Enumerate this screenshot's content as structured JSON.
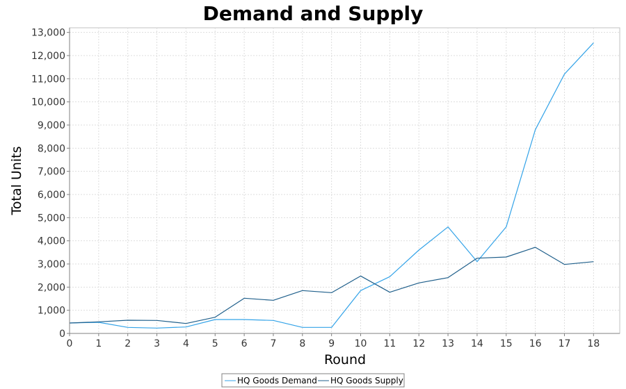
{
  "chart_data": {
    "type": "line",
    "title": "Demand and Supply",
    "xlabel": "Round",
    "ylabel": "Total Units",
    "x": [
      0,
      1,
      2,
      3,
      4,
      5,
      6,
      7,
      8,
      9,
      10,
      11,
      12,
      13,
      14,
      15,
      16,
      17,
      18
    ],
    "xlim": [
      0,
      18.9
    ],
    "ylim": [
      0,
      13200
    ],
    "yticks": [
      0,
      1000,
      2000,
      3000,
      4000,
      5000,
      6000,
      7000,
      8000,
      9000,
      10000,
      11000,
      12000,
      13000
    ],
    "ytick_labels": [
      "0",
      "1,000",
      "2,000",
      "3,000",
      "4,000",
      "5,000",
      "6,000",
      "7,000",
      "8,000",
      "9,000",
      "10,000",
      "11,000",
      "12,000",
      "13,000"
    ],
    "xtick_labels": [
      "0",
      "1",
      "2",
      "3",
      "4",
      "5",
      "6",
      "7",
      "8",
      "9",
      "10",
      "11",
      "12",
      "13",
      "14",
      "15",
      "16",
      "17",
      "18"
    ],
    "grid": true,
    "legend_position": "bottom",
    "series": [
      {
        "name": "HQ Goods Demand",
        "color": "#33a3e8",
        "values": [
          450,
          480,
          260,
          230,
          280,
          600,
          600,
          560,
          260,
          260,
          1850,
          2450,
          3600,
          4600,
          3100,
          4600,
          8800,
          11200,
          12550
        ]
      },
      {
        "name": "HQ Goods Supply",
        "color": "#1f5f8b",
        "values": [
          450,
          500,
          570,
          560,
          430,
          700,
          1520,
          1430,
          1850,
          1760,
          2480,
          1780,
          2180,
          2410,
          3250,
          3300,
          3720,
          2980,
          3100
        ]
      }
    ]
  }
}
